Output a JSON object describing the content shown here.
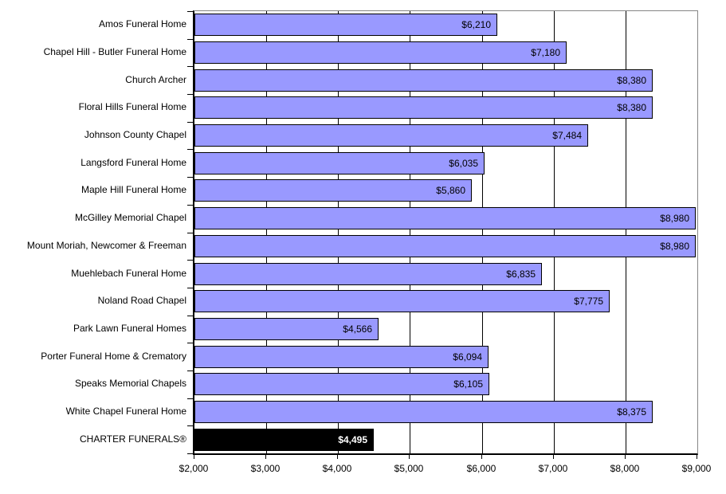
{
  "chart_data": {
    "type": "bar",
    "orientation": "horizontal",
    "title": "",
    "xlabel": "",
    "ylabel": "",
    "categories": [
      "Amos Funeral Home",
      "Chapel Hill - Butler Funeral Home",
      "Church Archer",
      "Floral Hills Funeral Home",
      "Johnson County Chapel",
      "Langsford Funeral Home",
      "Maple Hill Funeral Home",
      "McGilley Memorial Chapel",
      "Mount Moriah, Newcomer & Freeman",
      "Muehlebach Funeral Home",
      "Noland Road Chapel",
      "Park Lawn Funeral Homes",
      "Porter Funeral Home & Crematory",
      "Speaks Memorial Chapels",
      "White Chapel Funeral Home",
      "CHARTER FUNERALS®"
    ],
    "values": [
      6210,
      7180,
      8380,
      8380,
      7484,
      6035,
      5860,
      8980,
      8980,
      6835,
      7775,
      4566,
      6094,
      6105,
      8375,
      4495
    ],
    "value_labels": [
      "$6,210",
      "$7,180",
      "$8,380",
      "$8,380",
      "$7,484",
      "$6,035",
      "$5,860",
      "$8,980",
      "$8,980",
      "$6,835",
      "$7,775",
      "$4,566",
      "$6,094",
      "$6,105",
      "$8,375",
      "$4,495"
    ],
    "highlight_index": 15,
    "xlim": [
      2000,
      9000
    ],
    "x_tick_values": [
      2000,
      3000,
      4000,
      5000,
      6000,
      7000,
      8000,
      9000
    ],
    "x_tick_labels": [
      "$2,000",
      "$3,000",
      "$4,000",
      "$5,000",
      "$6,000",
      "$7,000",
      "$8,000",
      "$9,000"
    ],
    "grid": true,
    "legend": false,
    "colors": {
      "bar_fill": "#9999FF",
      "bar_border": "#000000",
      "highlight_fill": "#000000",
      "highlight_border": "#000000",
      "highlight_value_text": "#FFFFFF",
      "value_text": "#000000",
      "gridline": "#000000",
      "plot_border": "#868686",
      "axis_line": "#000000",
      "background": "#FFFFFF"
    }
  }
}
